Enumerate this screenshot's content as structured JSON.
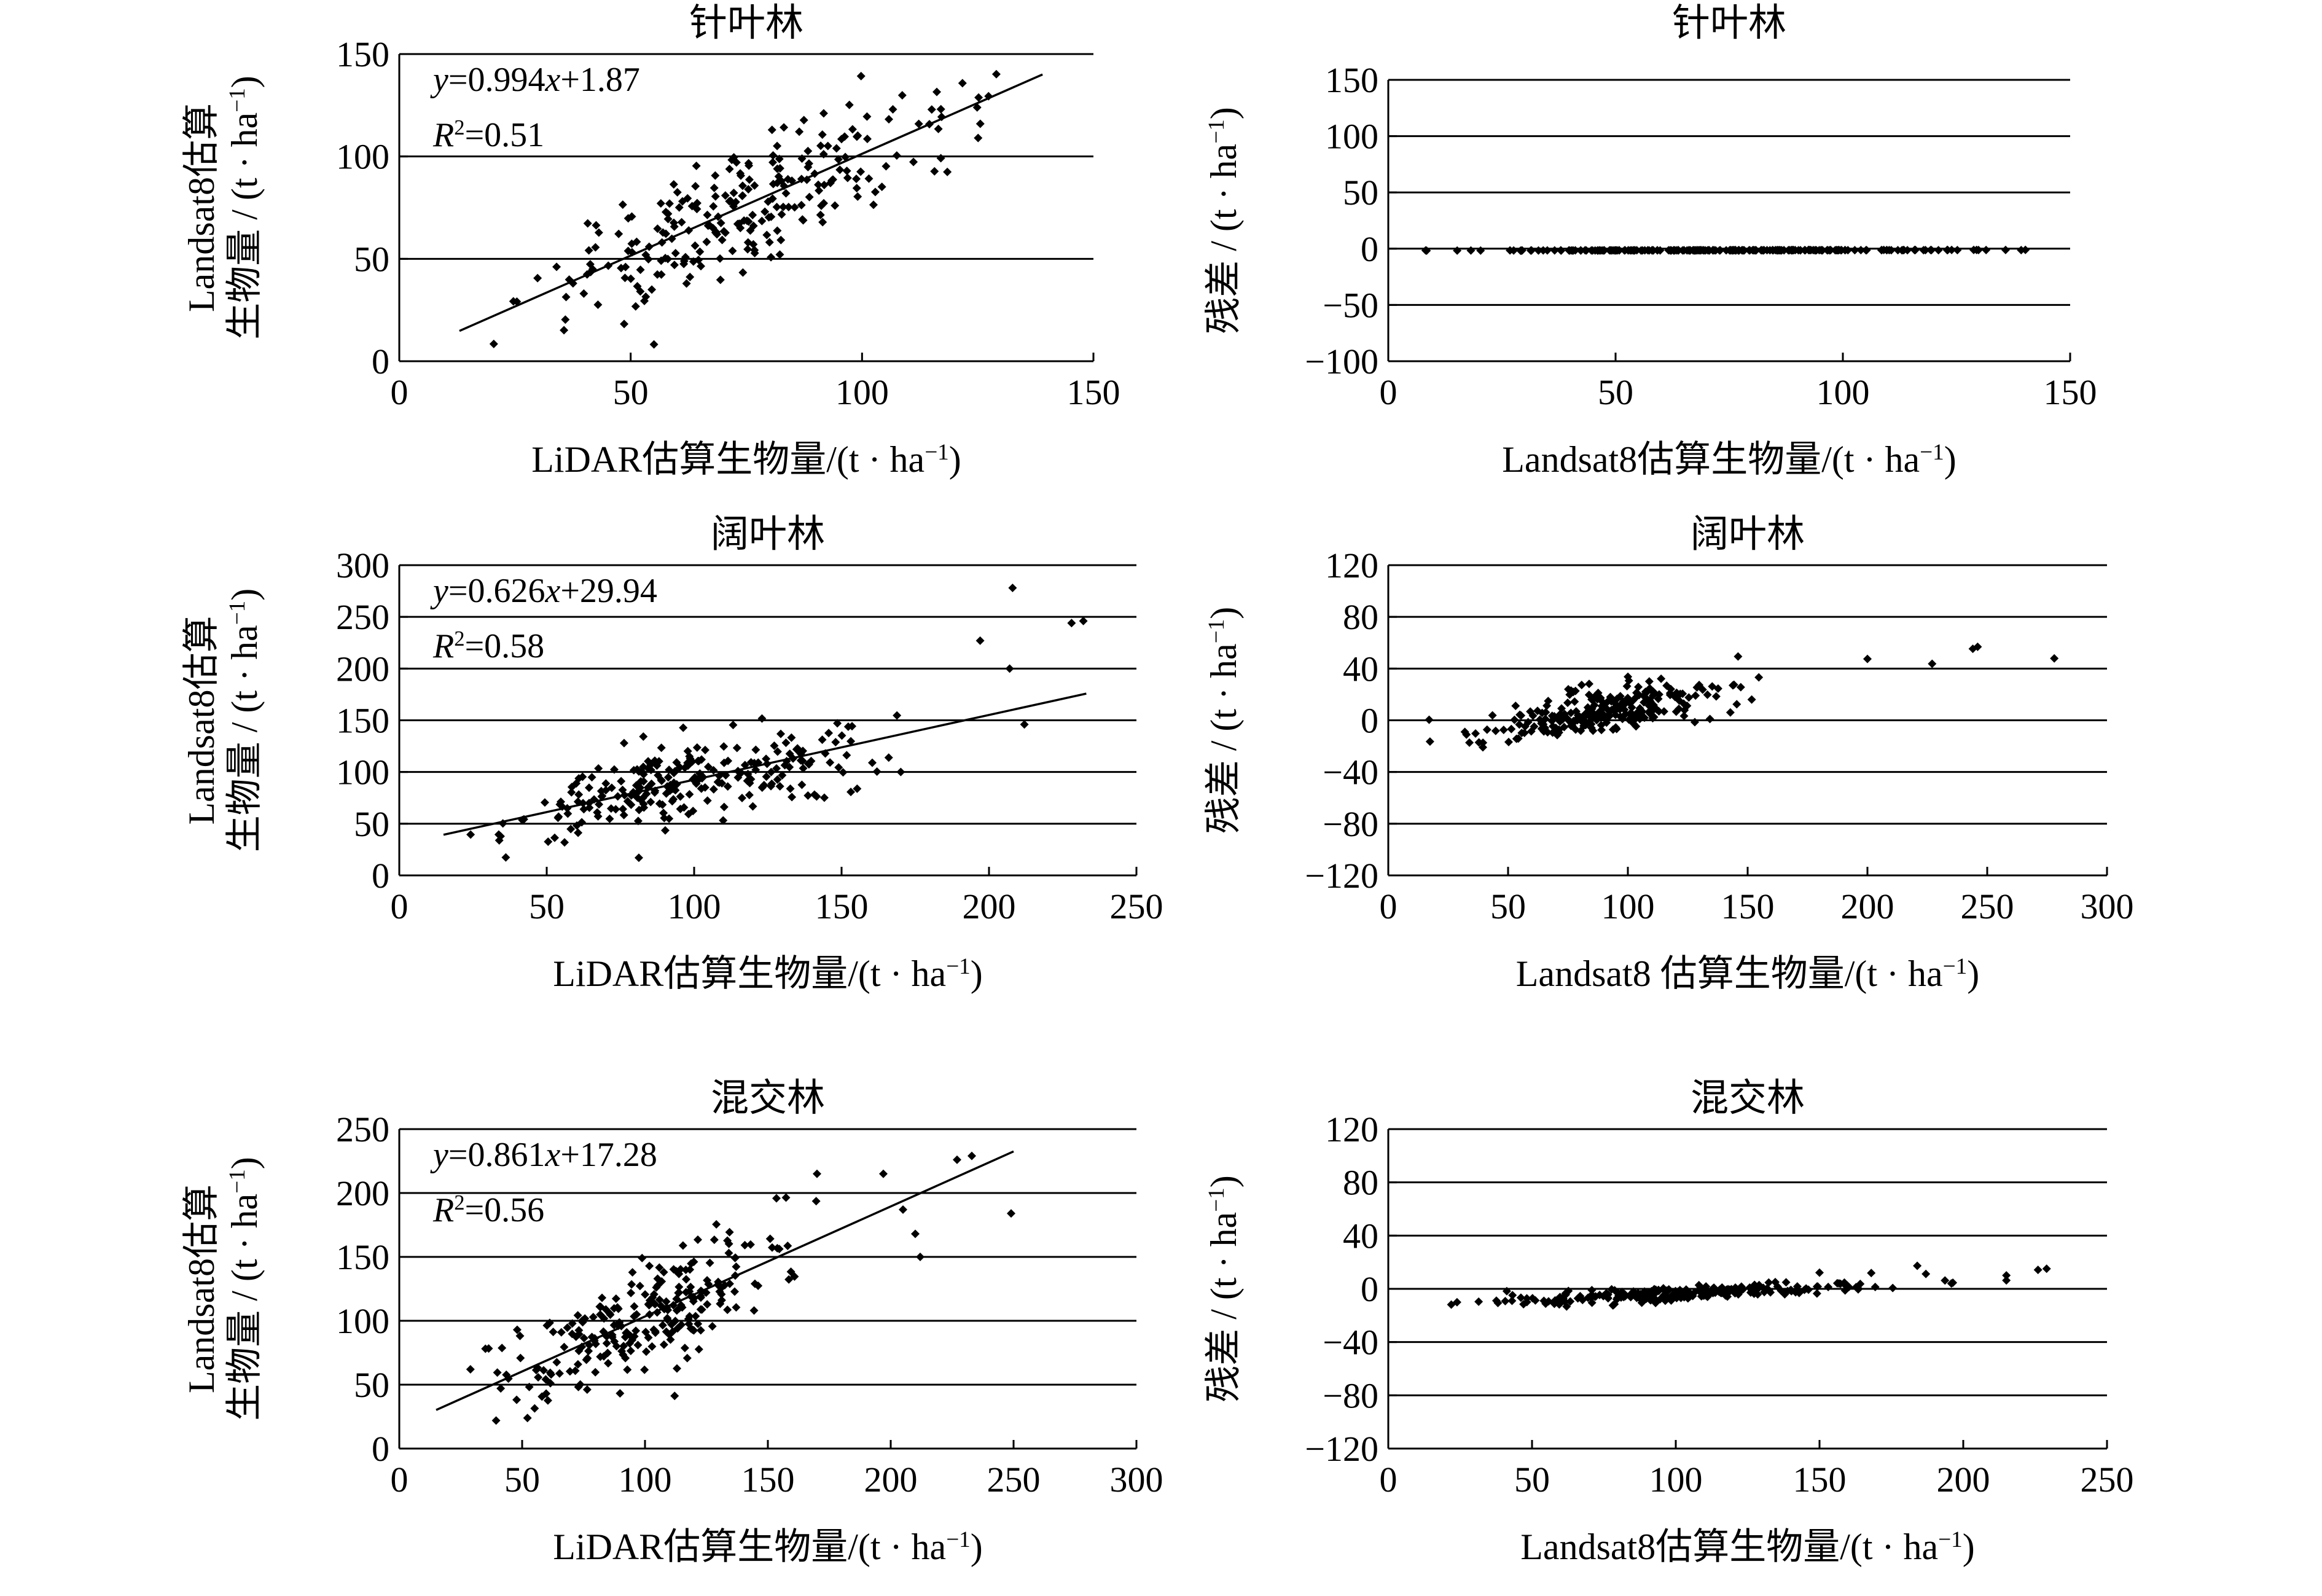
{
  "figure_colors": {
    "ink": "#000000",
    "background": "#ffffff"
  },
  "chart_data": [
    {
      "id": "conifer-regression",
      "type": "scatter",
      "title": "针叶林",
      "xlabel": "LiDAR估算生物量/(t · ha⁻¹)",
      "ylabel_lines": [
        "Landsat8估算",
        "生物量 / (t · ha⁻¹)"
      ],
      "xlim": [
        0,
        150
      ],
      "ylim": [
        0,
        150
      ],
      "xticks": [
        0,
        50,
        100,
        150
      ],
      "yticks": [
        0,
        50,
        100,
        150
      ],
      "gridlines": [
        50,
        100,
        150
      ],
      "equation": "y=0.994x+1.87",
      "r2": "R²=0.51",
      "fit": {
        "slope": 0.994,
        "intercept": 1.87,
        "x_range": [
          13,
          139
        ]
      },
      "n_points": 250,
      "x_min": 13,
      "x_max": 139,
      "noise_sd": 15
    },
    {
      "id": "conifer-residuals",
      "type": "scatter",
      "title": "针叶林",
      "xlabel": "Landsat8估算生物量/(t · ha⁻¹)",
      "ylabel_lines": [
        "残差 / (t · ha⁻¹)"
      ],
      "xlim": [
        0,
        150
      ],
      "ylim": [
        -100,
        150
      ],
      "xticks": [
        0,
        50,
        100,
        150
      ],
      "yticks": [
        -100,
        -50,
        0,
        50,
        100,
        150
      ],
      "gridlines": [
        -50,
        0,
        50,
        100,
        150
      ],
      "residuals_of": "conifer-regression"
    },
    {
      "id": "broadleaf-regression",
      "type": "scatter",
      "title": "阔叶林",
      "xlabel": "LiDAR估算生物量/(t · ha⁻¹)",
      "ylabel_lines": [
        "Landsat8估算",
        "生物量 / (t · ha⁻¹)"
      ],
      "xlim": [
        0,
        250
      ],
      "ylim": [
        0,
        300
      ],
      "xticks": [
        0,
        50,
        100,
        150,
        200,
        250
      ],
      "yticks": [
        0,
        50,
        100,
        150,
        200,
        250,
        300
      ],
      "gridlines": [
        50,
        100,
        150,
        200,
        250,
        300
      ],
      "equation": "y=0.626x+29.94",
      "r2": "R²=0.58",
      "fit": {
        "slope": 0.626,
        "intercept": 29.94,
        "x_range": [
          15,
          233
        ]
      },
      "n_points": 250,
      "x_min": 15,
      "x_max": 185,
      "noise_sd": 18,
      "extra_points": [
        [
          197,
          227
        ],
        [
          207,
          200
        ],
        [
          208,
          278
        ],
        [
          212,
          146
        ],
        [
          228,
          244
        ],
        [
          232,
          246
        ]
      ]
    },
    {
      "id": "broadleaf-residuals",
      "type": "scatter",
      "title": "阔叶林",
      "xlabel": "Landsat8 估算生物量/(t · ha⁻¹)",
      "ylabel_lines": [
        "残差 / (t · ha⁻¹)"
      ],
      "xlim": [
        0,
        300
      ],
      "ylim": [
        -120,
        120
      ],
      "xticks": [
        0,
        50,
        100,
        150,
        200,
        250,
        300
      ],
      "yticks": [
        -120,
        -80,
        -40,
        0,
        40,
        80,
        120
      ],
      "gridlines": [
        -80,
        -40,
        0,
        40,
        80,
        120
      ],
      "residuals_of": "broadleaf-regression"
    },
    {
      "id": "mixed-regression",
      "type": "scatter",
      "title": "混交林",
      "xlabel": "LiDAR估算生物量/(t · ha⁻¹)",
      "ylabel_lines": [
        "Landsat8估算",
        "生物量 / (t · ha⁻¹)"
      ],
      "xlim": [
        0,
        300
      ],
      "ylim": [
        0,
        250
      ],
      "xticks": [
        0,
        50,
        100,
        150,
        200,
        250,
        300
      ],
      "yticks": [
        0,
        50,
        100,
        150,
        200,
        250
      ],
      "gridlines": [
        50,
        100,
        150,
        200,
        250
      ],
      "equation": "y=0.861x+17.28",
      "r2": "R²=0.56",
      "fit": {
        "slope": 0.861,
        "intercept": 17.28,
        "x_range": [
          15,
          250
        ]
      },
      "n_points": 250,
      "x_min": 15,
      "x_max": 185,
      "noise_sd": 20,
      "extra_points": [
        [
          170,
          215
        ],
        [
          197,
          215
        ],
        [
          205,
          187
        ],
        [
          210,
          168
        ],
        [
          212,
          150
        ],
        [
          227,
          226
        ],
        [
          233,
          229
        ],
        [
          249,
          184
        ]
      ]
    },
    {
      "id": "mixed-residuals",
      "type": "scatter",
      "title": "混交林",
      "xlabel": "Landsat8估算生物量/(t · ha⁻¹)",
      "ylabel_lines": [
        "残差 / (t · ha⁻¹)"
      ],
      "xlim": [
        0,
        250
      ],
      "ylim": [
        -120,
        120
      ],
      "xticks": [
        0,
        50,
        100,
        150,
        200,
        250
      ],
      "yticks": [
        -120,
        -80,
        -40,
        0,
        40,
        80,
        120
      ],
      "gridlines": [
        -80,
        -40,
        0,
        40,
        80,
        120
      ],
      "residuals_of": "mixed-regression"
    }
  ]
}
